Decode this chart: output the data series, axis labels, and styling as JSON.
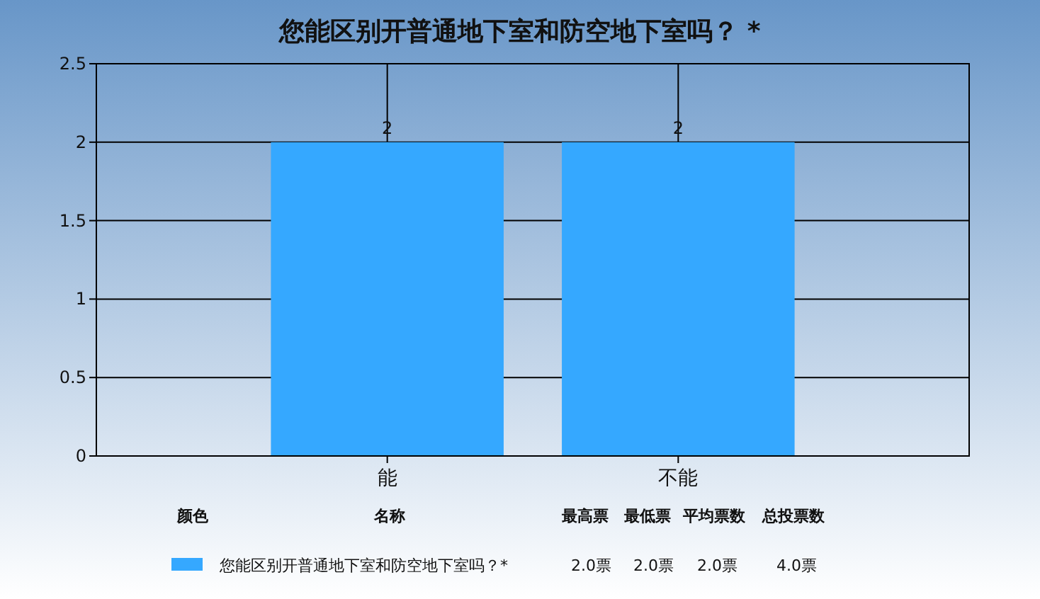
{
  "chart_data": {
    "type": "bar",
    "title": "您能区别开普通地下室和防空地下室吗？ *",
    "categories": [
      "能",
      "不能"
    ],
    "series": [
      {
        "name": "您能区别开普通地下室和防空地下室吗？*",
        "color": "#35a8ff",
        "values": [
          2,
          2
        ]
      }
    ],
    "ylim": [
      0,
      2.5
    ],
    "yticks": [
      0,
      0.5,
      1,
      1.5,
      2,
      2.5
    ],
    "grid": true,
    "data_labels": true,
    "legend": "bottom",
    "annotations": [
      "颜色",
      "名称",
      "最高票",
      "最低票",
      "平均票数",
      "总投票数",
      "2.0票",
      "2.0票",
      "2.0票",
      "4.0票"
    ]
  }
}
